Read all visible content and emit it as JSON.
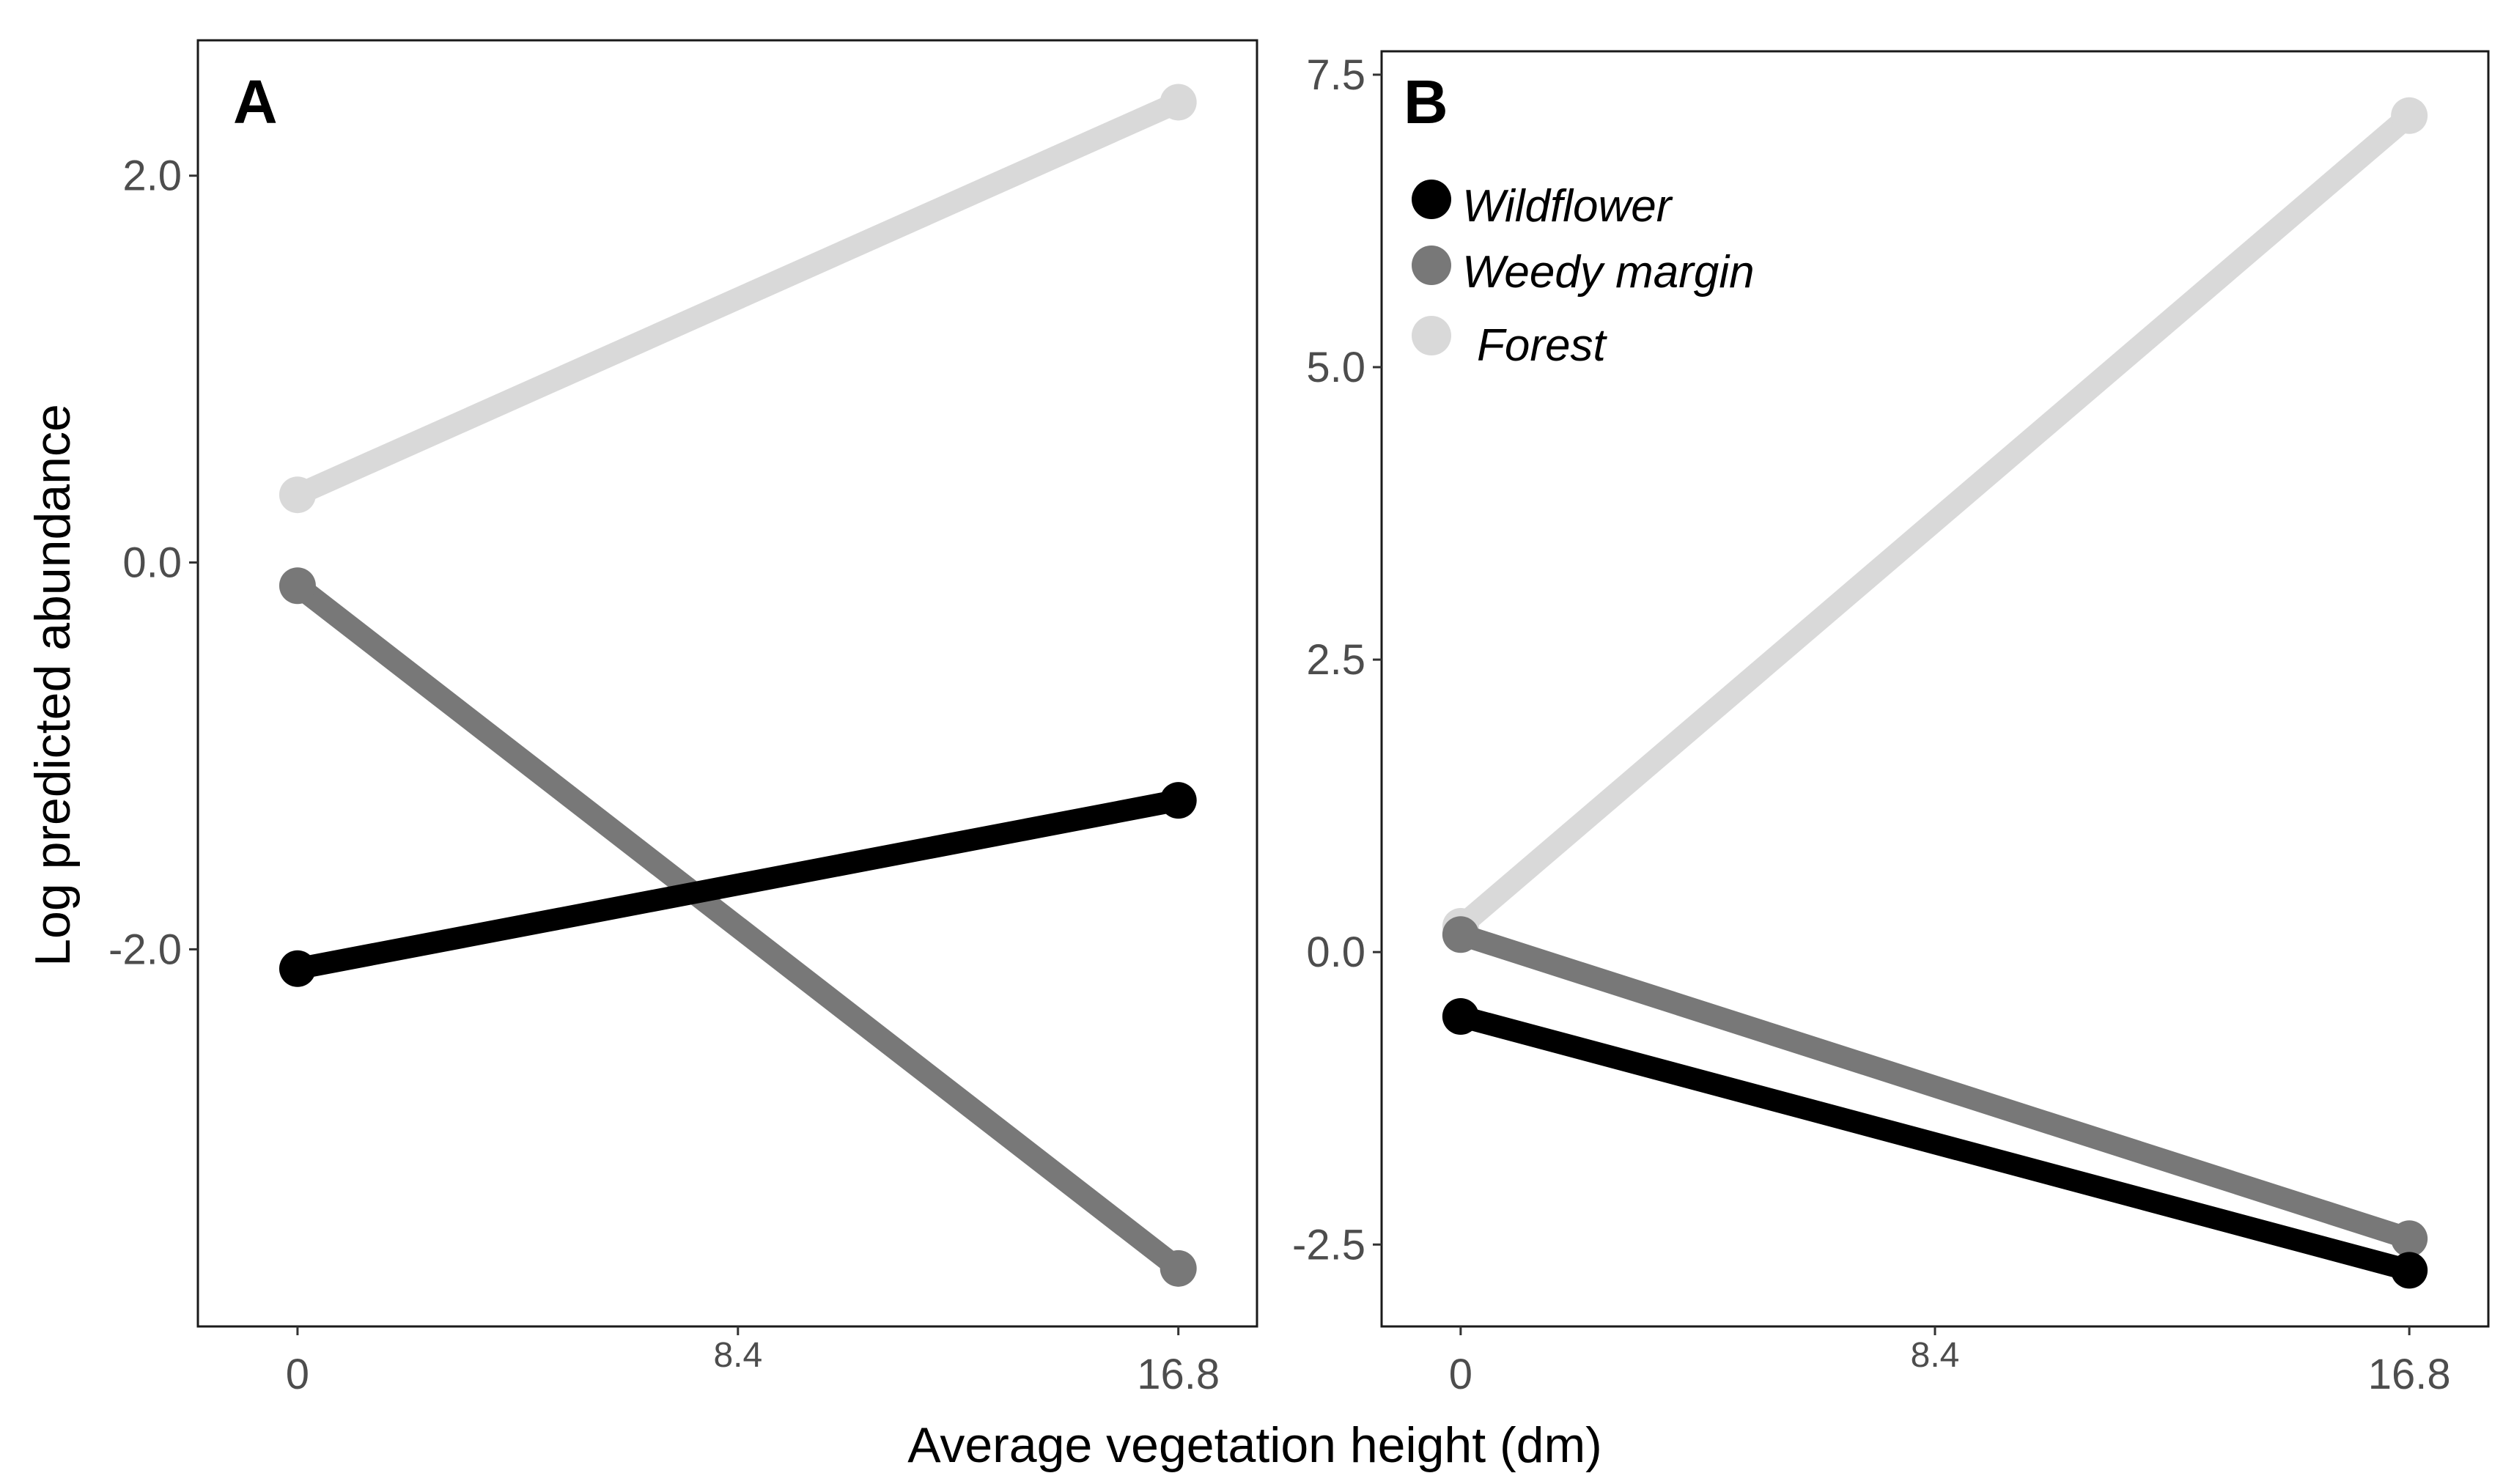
{
  "figure": {
    "xlabel": "Average vegetation height (dm)",
    "ylabel": "Log predicted abundance"
  },
  "legend": {
    "items": [
      {
        "label": "Wildflower",
        "color": "#000000"
      },
      {
        "label": "Weedy margin",
        "color": "#787878"
      },
      {
        "label": "Forest",
        "color": "#d9d9d9"
      }
    ]
  },
  "chart_data": [
    {
      "panel": "A",
      "type": "line",
      "title": "A",
      "xlabel": "Average vegetation height (dm)",
      "ylabel": "Log predicted abundance",
      "xlim": [
        -1.9,
        18.3
      ],
      "ylim": [
        -3.95,
        2.7
      ],
      "xticks": [
        0,
        8.4,
        16.8
      ],
      "xtick_labels": [
        "0",
        "8.4",
        "16.8"
      ],
      "yticks": [
        -2.0,
        0.0,
        2.0
      ],
      "ytick_labels": [
        "-2.0",
        "0.0",
        "2.0"
      ],
      "x": [
        0,
        16.8
      ],
      "series": [
        {
          "name": "Wildflower",
          "color": "#000000",
          "values": [
            -2.1,
            -1.23
          ]
        },
        {
          "name": "Weedy margin",
          "color": "#787878",
          "values": [
            -0.12,
            -3.65
          ]
        },
        {
          "name": "Forest",
          "color": "#d9d9d9",
          "values": [
            0.35,
            2.38
          ]
        }
      ],
      "legend": "none"
    },
    {
      "panel": "B",
      "type": "line",
      "title": "B",
      "xlabel": "Average vegetation height (dm)",
      "ylabel": "",
      "xlim": [
        -1.4,
        18.2
      ],
      "ylim": [
        -3.2,
        7.7
      ],
      "xticks": [
        0,
        8.4,
        16.8
      ],
      "xtick_labels": [
        "0",
        "8.4",
        "16.8"
      ],
      "yticks": [
        -2.5,
        0.0,
        2.5,
        5.0,
        7.5
      ],
      "ytick_labels": [
        "-2.5",
        "0.0",
        "2.5",
        "5.0",
        "7.5"
      ],
      "x": [
        0,
        16.8
      ],
      "series": [
        {
          "name": "Wildflower",
          "color": "#000000",
          "values": [
            -0.55,
            -2.72
          ]
        },
        {
          "name": "Weedy margin",
          "color": "#787878",
          "values": [
            0.15,
            -2.45
          ]
        },
        {
          "name": "Forest",
          "color": "#d9d9d9",
          "values": [
            0.22,
            7.15
          ]
        }
      ],
      "legend": "top-left"
    }
  ]
}
